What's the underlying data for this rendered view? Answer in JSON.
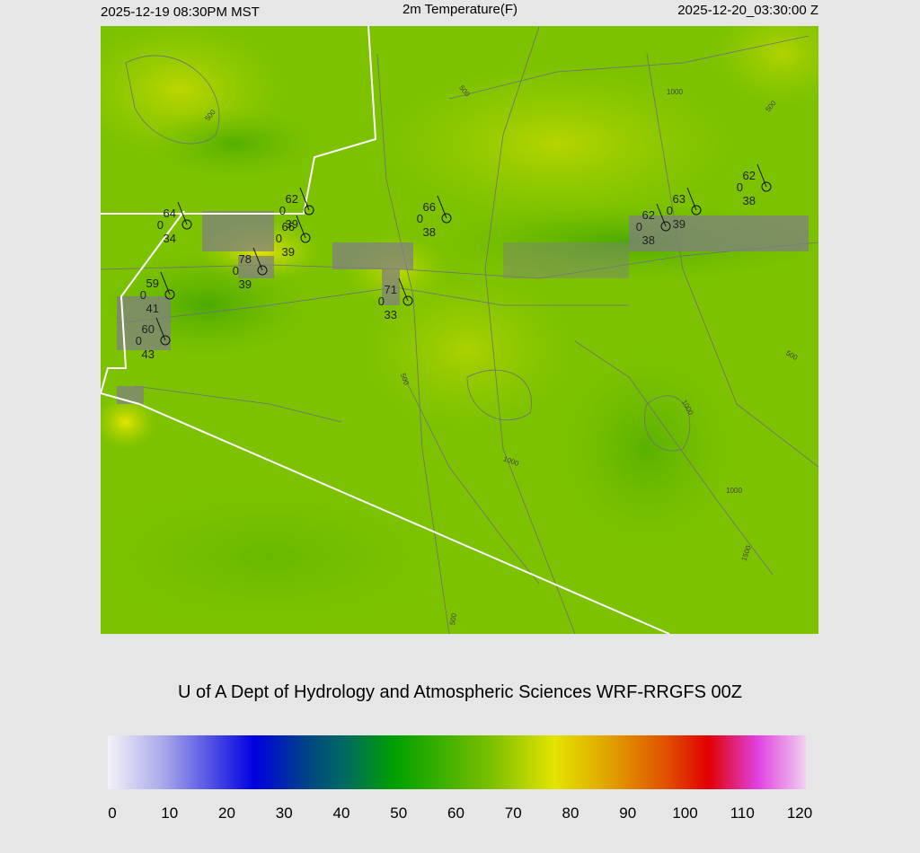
{
  "header": {
    "left": "2025-12-19 08:30PM MST",
    "title": "2m Temperature(F)",
    "right": "2025-12-20_03:30:00 Z"
  },
  "footer": "U of A Dept of Hydrology and Atmospheric Sciences WRF-RRGFS 00Z",
  "colorbar": {
    "range": [
      0,
      120
    ],
    "ticks": [
      0,
      10,
      20,
      30,
      40,
      50,
      60,
      70,
      80,
      90,
      100,
      110,
      120
    ]
  },
  "stations": [
    {
      "temp": 64,
      "wind": 0,
      "dew": 34
    },
    {
      "temp": 62,
      "wind": 0,
      "dew": 39
    },
    {
      "temp": 66,
      "wind": 0,
      "dew": 39
    },
    {
      "temp": 78,
      "wind": 0,
      "dew": 39
    },
    {
      "temp": 59,
      "wind": 0,
      "dew": 41
    },
    {
      "temp": 60,
      "wind": 0,
      "dew": 43
    },
    {
      "temp": 71,
      "wind": 0,
      "dew": 33
    },
    {
      "temp": 66,
      "wind": 0,
      "dew": 38
    },
    {
      "temp": 62,
      "wind": 0,
      "dew": 38
    },
    {
      "temp": 63,
      "wind": 0,
      "dew": 39
    },
    {
      "temp": 62,
      "wind": 0,
      "dew": 38
    }
  ],
  "contour_labels": [
    "500",
    "500",
    "1000",
    "500",
    "500",
    "1000",
    "1000",
    "1000",
    "500",
    "1500",
    "500"
  ]
}
